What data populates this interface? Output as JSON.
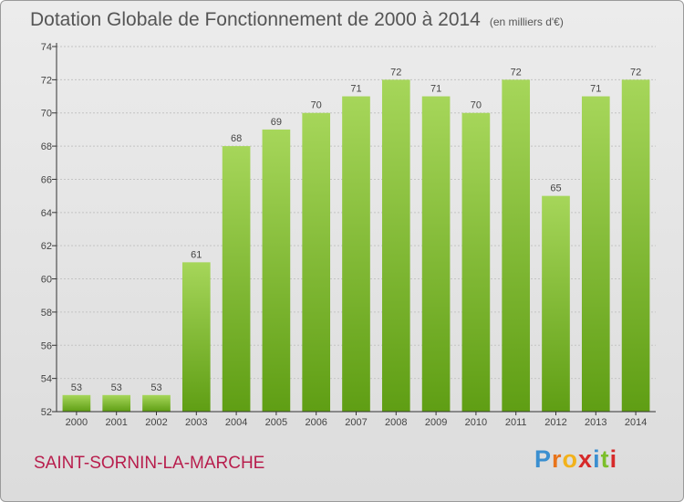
{
  "header": {
    "title": "Dotation Globale de Fonctionnement de 2000 à 2014",
    "unit": "(en milliers d'€)"
  },
  "commune": "SAINT-SORNIN-LA-MARCHE",
  "logo": {
    "text": "Proxiti",
    "letters": [
      "P",
      "r",
      "o",
      "x",
      "i",
      "t",
      "i"
    ],
    "colors": [
      "#3a8fd0",
      "#e8741b",
      "#f2b21b",
      "#d62a2a",
      "#3a8fd0",
      "#7cbf2a",
      "#d62a2a"
    ]
  },
  "colors": {
    "bar_top": "#a6d65a",
    "bar_bottom": "#5f9e14",
    "axis": "#333333",
    "grid": "#c4c4c4",
    "label": "#444444"
  },
  "chart_data": {
    "type": "bar",
    "categories": [
      "2000",
      "2001",
      "2002",
      "2003",
      "2004",
      "2005",
      "2006",
      "2007",
      "2008",
      "2009",
      "2010",
      "2011",
      "2012",
      "2013",
      "2014"
    ],
    "values": [
      53,
      53,
      53,
      61,
      68,
      69,
      70,
      71,
      72,
      71,
      70,
      72,
      65,
      71,
      72
    ],
    "ylim": [
      52,
      74
    ],
    "yticks": [
      52,
      54,
      56,
      58,
      60,
      62,
      64,
      66,
      68,
      70,
      72,
      74
    ],
    "grid": true,
    "data_labels": true
  }
}
